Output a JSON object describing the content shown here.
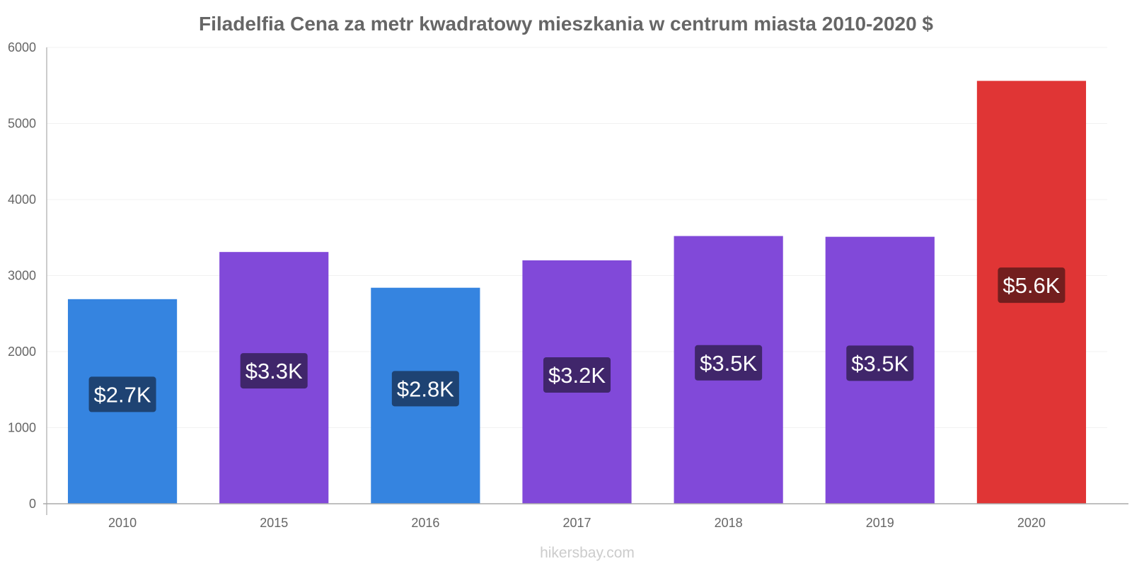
{
  "chart_data": {
    "type": "bar",
    "title": "Filadelfia Cena za metr kwadratowy mieszkania w centrum miasta 2010-2020 $",
    "categories": [
      "2010",
      "2015",
      "2016",
      "2017",
      "2018",
      "2019",
      "2020"
    ],
    "values": [
      2690,
      3310,
      2840,
      3200,
      3520,
      3510,
      5560
    ],
    "data_labels": [
      "$2.7K",
      "$3.3K",
      "$2.8K",
      "$3.2K",
      "$3.5K",
      "$3.5K",
      "$5.6K"
    ],
    "bar_colors": [
      "#3584e0",
      "#8149d9",
      "#3584e0",
      "#8149d9",
      "#8149d9",
      "#8149d9",
      "#e03535"
    ],
    "label_colors": [
      "#1e4373",
      "#40266b",
      "#1e4373",
      "#40266b",
      "#40266b",
      "#40266b",
      "#731e1e"
    ],
    "ylim": [
      0,
      6000
    ],
    "yticks": [
      0,
      1000,
      2000,
      3000,
      4000,
      5000,
      6000
    ],
    "xlabel": "",
    "ylabel": "",
    "grid": true,
    "legend": "none"
  },
  "watermark": "hikersbay.com"
}
